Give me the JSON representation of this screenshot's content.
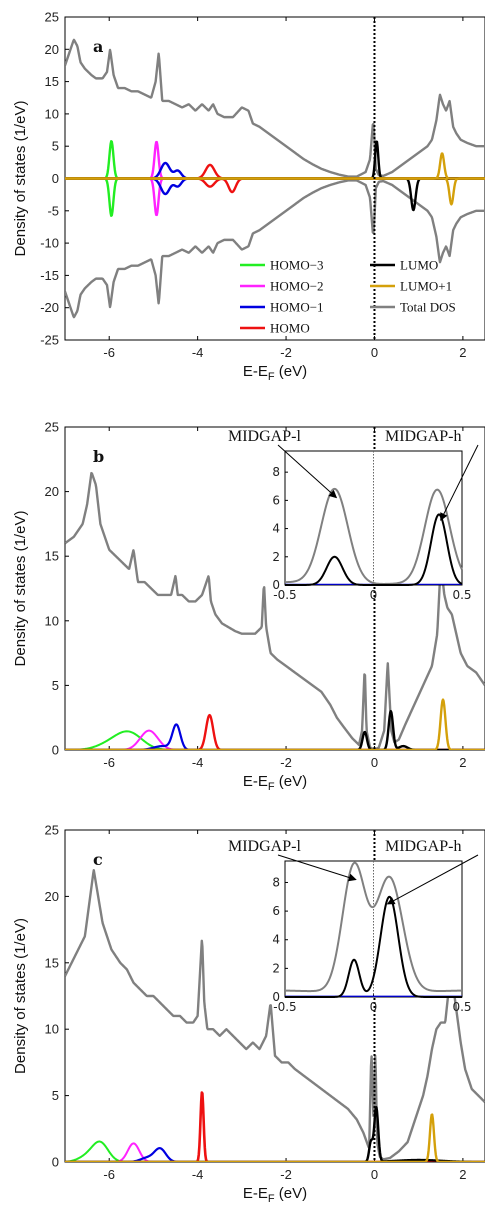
{
  "colors": {
    "homo_3": "#22ee22",
    "homo_2": "#ff22ff",
    "homo_1": "#0000e0",
    "homo": "#ee1111",
    "lumo": "#000000",
    "lumo_1": "#d4a00a",
    "total": "#808080"
  },
  "chart_data": [
    {
      "type": "line",
      "panel_label": "a",
      "xlabel": "E-E",
      "xlabel_sub": "F",
      "xlabel_unit": " (eV)",
      "ylabel": "Density of states (1/eV)",
      "xlim": [
        -7,
        2.5
      ],
      "ylim": [
        -25,
        25
      ],
      "xticks": [
        -6,
        -4,
        -2,
        0,
        2
      ],
      "xtick_labels": [
        "-6",
        "-4",
        "-2",
        "0",
        "2"
      ],
      "yticks": [
        -25,
        -20,
        -15,
        -10,
        -5,
        0,
        5,
        10,
        15,
        20,
        25
      ],
      "ytick_labels": [
        "-25",
        "-20",
        "-15",
        "-10",
        "-5",
        "0",
        "5",
        "10",
        "15",
        "20",
        "25"
      ],
      "fermi_line_x": 0,
      "legend": {
        "placement": "bottom-right",
        "entries": [
          {
            "label": "HOMO−3",
            "color_key": "homo_3"
          },
          {
            "label": "HOMO−2",
            "color_key": "homo_2"
          },
          {
            "label": "HOMO−1",
            "color_key": "homo_1"
          },
          {
            "label": "HOMO",
            "color_key": "homo"
          },
          {
            "label": "LUMO",
            "color_key": "lumo"
          },
          {
            "label": "LUMO+1",
            "color_key": "lumo_1"
          },
          {
            "label": "Total DOS",
            "color_key": "total"
          }
        ]
      },
      "series": [
        {
          "name": "Total DOS",
          "color_key": "total",
          "width": 2.4,
          "mirror": true,
          "x": [
            -7,
            -6.9,
            -6.8,
            -6.72,
            -6.65,
            -6.55,
            -6.4,
            -6.3,
            -6.15,
            -6.05,
            -5.98,
            -5.9,
            -5.8,
            -5.65,
            -5.5,
            -5.35,
            -5.2,
            -5.05,
            -4.95,
            -4.88,
            -4.8,
            -4.65,
            -4.5,
            -4.35,
            -4.2,
            -4.05,
            -3.9,
            -3.75,
            -3.65,
            -3.55,
            -3.4,
            -3.2,
            -3.0,
            -2.85,
            -2.75,
            -2.6,
            -2.4,
            -2.2,
            -2.0,
            -1.8,
            -1.6,
            -1.4,
            -1.2,
            -1.0,
            -0.8,
            -0.6,
            -0.4,
            -0.2,
            -0.1,
            -0.03,
            0,
            0.03,
            0.1,
            0.2,
            0.4,
            0.6,
            0.8,
            1.0,
            1.2,
            1.3,
            1.4,
            1.48,
            1.55,
            1.62,
            1.7,
            1.78,
            1.85,
            1.95,
            2.1,
            2.3,
            2.5
          ],
          "y": [
            17.5,
            19.5,
            21.5,
            20.5,
            18,
            17,
            16,
            15.5,
            15.5,
            16.5,
            20,
            16,
            14,
            14,
            13.5,
            13.5,
            13,
            12.5,
            15,
            19.5,
            12,
            12,
            11.5,
            11,
            11.5,
            10.5,
            11.5,
            10.5,
            11.5,
            10,
            9.5,
            9.5,
            11,
            10.5,
            8.5,
            8,
            7,
            6,
            5,
            4,
            3,
            2.2,
            1.5,
            1,
            0.6,
            0.3,
            0.3,
            1,
            3,
            9,
            6,
            1.5,
            0.5,
            0.4,
            1,
            2,
            3,
            4,
            5,
            6,
            9,
            13,
            11.5,
            10.5,
            12,
            8,
            7,
            6,
            5.5,
            5,
            5
          ]
        },
        {
          "name": "HOMO−3",
          "color_key": "homo_3",
          "width": 2.4,
          "mirror": true,
          "peak": {
            "x0": -5.95,
            "amp": 5.8,
            "sigma": 0.045
          }
        },
        {
          "name": "HOMO−2",
          "color_key": "homo_2",
          "width": 2.4,
          "mirror": true,
          "peak": {
            "x0": -4.93,
            "amp": 5.7,
            "sigma": 0.045
          }
        },
        {
          "name": "HOMO−1",
          "color_key": "homo_1",
          "width": 2.4,
          "mirror": true,
          "peak": {
            "x0": -4.73,
            "amp": 2.4,
            "sigma": 0.1
          },
          "peak2": {
            "x0": -4.45,
            "amp": 1.2,
            "sigma": 0.08
          }
        },
        {
          "name": "HOMO",
          "color_key": "homo",
          "width": 2.4,
          "mirror": true,
          "peak": {
            "x0": -3.72,
            "amp": 2.1,
            "sigma": 0.1
          },
          "neg_peak": {
            "x0": -3.22,
            "amp": 2.1,
            "sigma": 0.08
          }
        },
        {
          "name": "LUMO",
          "color_key": "lumo",
          "width": 2.4,
          "mirror": false,
          "peak": {
            "x0": 0.05,
            "amp": 5.8,
            "sigma": 0.035
          },
          "neg_peak": {
            "x0": 0.88,
            "amp": 4.9,
            "sigma": 0.05
          }
        },
        {
          "name": "LUMO+1",
          "color_key": "lumo_1",
          "width": 2.4,
          "mirror": false,
          "peak": {
            "x0": 1.53,
            "amp": 3.9,
            "sigma": 0.045
          },
          "neg_peak": {
            "x0": 1.74,
            "amp": 4.0,
            "sigma": 0.045
          }
        }
      ]
    },
    {
      "type": "line",
      "panel_label": "b",
      "xlabel": "E-E",
      "xlabel_sub": "F",
      "xlabel_unit": " (eV)",
      "ylabel": "Density of states (1/eV)",
      "xlim": [
        -7,
        2.5
      ],
      "ylim": [
        0,
        25
      ],
      "xticks": [
        -6,
        -4,
        -2,
        0,
        2
      ],
      "xtick_labels": [
        "-6",
        "-4",
        "-2",
        "0",
        "2"
      ],
      "yticks": [
        0,
        5,
        10,
        15,
        20,
        25
      ],
      "ytick_labels": [
        "0",
        "5",
        "10",
        "15",
        "20",
        "25"
      ],
      "fermi_line_x": 0,
      "series": [
        {
          "name": "Total DOS",
          "color_key": "total",
          "width": 2.4,
          "x": [
            -7,
            -6.8,
            -6.6,
            -6.5,
            -6.4,
            -6.3,
            -6.2,
            -6.1,
            -6.0,
            -5.85,
            -5.7,
            -5.55,
            -5.45,
            -5.35,
            -5.2,
            -5.05,
            -4.9,
            -4.75,
            -4.6,
            -4.5,
            -4.45,
            -4.35,
            -4.2,
            -4.05,
            -3.9,
            -3.75,
            -3.7,
            -3.6,
            -3.45,
            -3.3,
            -3.15,
            -3.0,
            -2.85,
            -2.7,
            -2.55,
            -2.5,
            -2.45,
            -2.35,
            -2.2,
            -2.0,
            -1.8,
            -1.6,
            -1.4,
            -1.2,
            -1.0,
            -0.85,
            -0.7,
            -0.5,
            -0.35,
            -0.28,
            -0.22,
            -0.18,
            -0.1,
            0,
            0.1,
            0.22,
            0.3,
            0.38,
            0.45,
            0.55,
            0.7,
            0.9,
            1.1,
            1.3,
            1.42,
            1.5,
            1.58,
            1.65,
            1.75,
            1.85,
            1.95,
            2.1,
            2.3,
            2.5
          ],
          "y": [
            16,
            16.5,
            17.5,
            19,
            21.5,
            20.5,
            17.5,
            16.5,
            15.5,
            15,
            14.5,
            14,
            15.5,
            13,
            13,
            12.5,
            12,
            12,
            12,
            13.5,
            12,
            12,
            11.5,
            11.5,
            12,
            13.5,
            11.5,
            10.5,
            9.8,
            9.5,
            9.2,
            9,
            9,
            9,
            9.5,
            13,
            9.5,
            7.5,
            7,
            6.5,
            6,
            5.5,
            5,
            4.5,
            3.5,
            2.5,
            1.8,
            0.9,
            0.4,
            1.5,
            6.5,
            1.5,
            0.2,
            0.02,
            0.2,
            1.5,
            6.8,
            1.5,
            0.6,
            0.8,
            2,
            3.5,
            5,
            6.5,
            9,
            14.5,
            12,
            11,
            10.5,
            9,
            7.5,
            6.5,
            6,
            5
          ]
        },
        {
          "name": "HOMO−3",
          "color_key": "homo_3",
          "width": 2.0,
          "gauss": [
            {
              "x0": -5.55,
              "amp": 1.3,
              "sigma": 0.3
            },
            {
              "x0": -6.0,
              "amp": 0.4,
              "sigma": 0.3
            }
          ]
        },
        {
          "name": "HOMO−2",
          "color_key": "homo_2",
          "width": 2.0,
          "gauss": [
            {
              "x0": -5.1,
              "amp": 1.5,
              "sigma": 0.2
            }
          ]
        },
        {
          "name": "HOMO−1",
          "color_key": "homo_1",
          "width": 2.2,
          "gauss": [
            {
              "x0": -4.48,
              "amp": 1.9,
              "sigma": 0.09
            },
            {
              "x0": -4.8,
              "amp": 0.3,
              "sigma": 0.2
            }
          ]
        },
        {
          "name": "HOMO",
          "color_key": "homo",
          "width": 2.4,
          "gauss": [
            {
              "x0": -3.73,
              "amp": 2.7,
              "sigma": 0.08
            }
          ]
        },
        {
          "name": "LUMO",
          "color_key": "lumo",
          "width": 2.4,
          "gauss": [
            {
              "x0": -0.22,
              "amp": 1.4,
              "sigma": 0.05
            },
            {
              "x0": 0.37,
              "amp": 3.0,
              "sigma": 0.05
            },
            {
              "x0": 0.65,
              "amp": 0.3,
              "sigma": 0.1
            }
          ]
        },
        {
          "name": "LUMO+1",
          "color_key": "lumo_1",
          "width": 2.4,
          "gauss": [
            {
              "x0": 1.55,
              "amp": 3.9,
              "sigma": 0.055
            }
          ]
        }
      ],
      "inset": {
        "xlim": [
          -0.5,
          0.5
        ],
        "ylim": [
          0,
          9.5
        ],
        "xticks": [
          -0.5,
          0,
          0.5
        ],
        "xtick_labels": [
          "-0.5",
          "0",
          "0.5"
        ],
        "yticks": [
          0,
          2,
          4,
          6,
          8
        ],
        "ytick_labels": [
          "0",
          "2",
          "4",
          "6",
          "8"
        ],
        "annotation_left": "MIDGAP-l",
        "annotation_right": "MIDGAP-h",
        "arrow_left_target": [
          -0.21,
          6.2
        ],
        "arrow_right_target": [
          0.38,
          4.6
        ],
        "total_peaks": [
          {
            "x0": -0.22,
            "amp": 6.7,
            "sigma": 0.075
          },
          {
            "x0": 0.36,
            "amp": 6.6,
            "sigma": 0.07
          }
        ],
        "total_base": 0.05,
        "lumo_peaks": [
          {
            "x0": -0.22,
            "amp": 2.0,
            "sigma": 0.045
          },
          {
            "x0": 0.37,
            "amp": 5.0,
            "sigma": 0.045
          }
        ]
      }
    },
    {
      "type": "line",
      "panel_label": "c",
      "xlabel": "E-E",
      "xlabel_sub": "F",
      "xlabel_unit": " (eV)",
      "ylabel": "Density of states (1/eV)",
      "xlim": [
        -7,
        2.5
      ],
      "ylim": [
        0,
        25
      ],
      "xticks": [
        -6,
        -4,
        -2,
        0,
        2
      ],
      "xtick_labels": [
        "-6",
        "-4",
        "-2",
        "0",
        "2"
      ],
      "yticks": [
        0,
        5,
        10,
        15,
        20,
        25
      ],
      "ytick_labels": [
        "0",
        "5",
        "10",
        "15",
        "20",
        "25"
      ],
      "fermi_line_x": 0,
      "series": [
        {
          "name": "Total DOS",
          "color_key": "total",
          "width": 2.4,
          "x": [
            -7,
            -6.85,
            -6.7,
            -6.55,
            -6.45,
            -6.35,
            -6.25,
            -6.15,
            -6.05,
            -5.95,
            -5.85,
            -5.75,
            -5.6,
            -5.45,
            -5.3,
            -5.15,
            -5.0,
            -4.85,
            -4.7,
            -4.55,
            -4.4,
            -4.25,
            -4.1,
            -4.0,
            -3.95,
            -3.9,
            -3.85,
            -3.78,
            -3.65,
            -3.5,
            -3.35,
            -3.2,
            -3.05,
            -2.9,
            -2.75,
            -2.6,
            -2.45,
            -2.35,
            -2.25,
            -2.1,
            -1.95,
            -1.8,
            -1.6,
            -1.4,
            -1.2,
            -1.0,
            -0.8,
            -0.6,
            -0.4,
            -0.25,
            -0.12,
            -0.07,
            -0.02,
            0.02,
            0.06,
            0.12,
            0.2,
            0.35,
            0.55,
            0.75,
            0.95,
            1.1,
            1.2,
            1.3,
            1.4,
            1.5,
            1.6,
            1.68,
            1.75,
            1.85,
            1.95,
            2.05,
            2.2,
            2.35,
            2.5
          ],
          "y": [
            14,
            15,
            16,
            17,
            19.5,
            22,
            20,
            18,
            17,
            16,
            15.5,
            15,
            14.5,
            13.5,
            13,
            12.5,
            12.5,
            12,
            11.5,
            11,
            11,
            10.5,
            10.5,
            11,
            14,
            17,
            12,
            10,
            10,
            9.5,
            10,
            9.5,
            9,
            8.5,
            9,
            8.5,
            9.5,
            12,
            8,
            7.5,
            7.5,
            7,
            6.5,
            6,
            5.5,
            5,
            4.5,
            4,
            3.2,
            2.2,
            1,
            8.5,
            3,
            8.5,
            1.5,
            0.4,
            0.2,
            0.3,
            0.8,
            1.5,
            3.5,
            5,
            6.5,
            8.5,
            10,
            10.5,
            10.5,
            13,
            14,
            11.5,
            9,
            7,
            5.5,
            5,
            4.5
          ]
        },
        {
          "name": "HOMO−3",
          "color_key": "homo_3",
          "width": 2.0,
          "gauss": [
            {
              "x0": -6.2,
              "amp": 1.4,
              "sigma": 0.18
            },
            {
              "x0": -6.5,
              "amp": 0.4,
              "sigma": 0.2
            }
          ]
        },
        {
          "name": "HOMO−2",
          "color_key": "homo_2",
          "width": 2.0,
          "gauss": [
            {
              "x0": -5.45,
              "amp": 1.4,
              "sigma": 0.13
            }
          ]
        },
        {
          "name": "HOMO−1",
          "color_key": "homo_1",
          "width": 2.2,
          "gauss": [
            {
              "x0": -4.85,
              "amp": 1.0,
              "sigma": 0.13
            },
            {
              "x0": -5.15,
              "amp": 0.3,
              "sigma": 0.15
            }
          ]
        },
        {
          "name": "HOMO",
          "color_key": "homo",
          "width": 2.6,
          "gauss": [
            {
              "x0": -3.9,
              "amp": 5.3,
              "sigma": 0.035
            }
          ]
        },
        {
          "name": "LUMO",
          "color_key": "lumo",
          "width": 2.4,
          "gauss": [
            {
              "x0": 0.04,
              "amp": 4.1,
              "sigma": 0.045
            },
            {
              "x0": -0.08,
              "amp": 1.5,
              "sigma": 0.04
            },
            {
              "x0": 1.0,
              "amp": 0.15,
              "sigma": 0.5
            }
          ]
        },
        {
          "name": "LUMO+1",
          "color_key": "lumo_1",
          "width": 2.4,
          "gauss": [
            {
              "x0": 1.3,
              "amp": 3.6,
              "sigma": 0.045
            }
          ]
        }
      ],
      "inset": {
        "xlim": [
          -0.5,
          0.5
        ],
        "ylim": [
          0,
          9.5
        ],
        "xticks": [
          -0.5,
          0,
          0.5
        ],
        "xtick_labels": [
          "-0.5",
          "0",
          "0.5"
        ],
        "yticks": [
          0,
          2,
          4,
          6,
          8
        ],
        "ytick_labels": [
          "0",
          "2",
          "4",
          "6",
          "8"
        ],
        "annotation_left": "MIDGAP-l",
        "annotation_right": "MIDGAP-h",
        "arrow_left_target": [
          -0.1,
          8.2
        ],
        "arrow_right_target": [
          0.08,
          6.5
        ],
        "total_peaks": [
          {
            "x0": -0.11,
            "amp": 8.8,
            "sigma": 0.065
          },
          {
            "x0": 0.09,
            "amp": 8.0,
            "sigma": 0.075
          }
        ],
        "total_base": 0.3,
        "lumo_peaks": [
          {
            "x0": -0.11,
            "amp": 2.6,
            "sigma": 0.03
          },
          {
            "x0": 0.09,
            "amp": 7.0,
            "sigma": 0.05
          }
        ]
      }
    }
  ]
}
